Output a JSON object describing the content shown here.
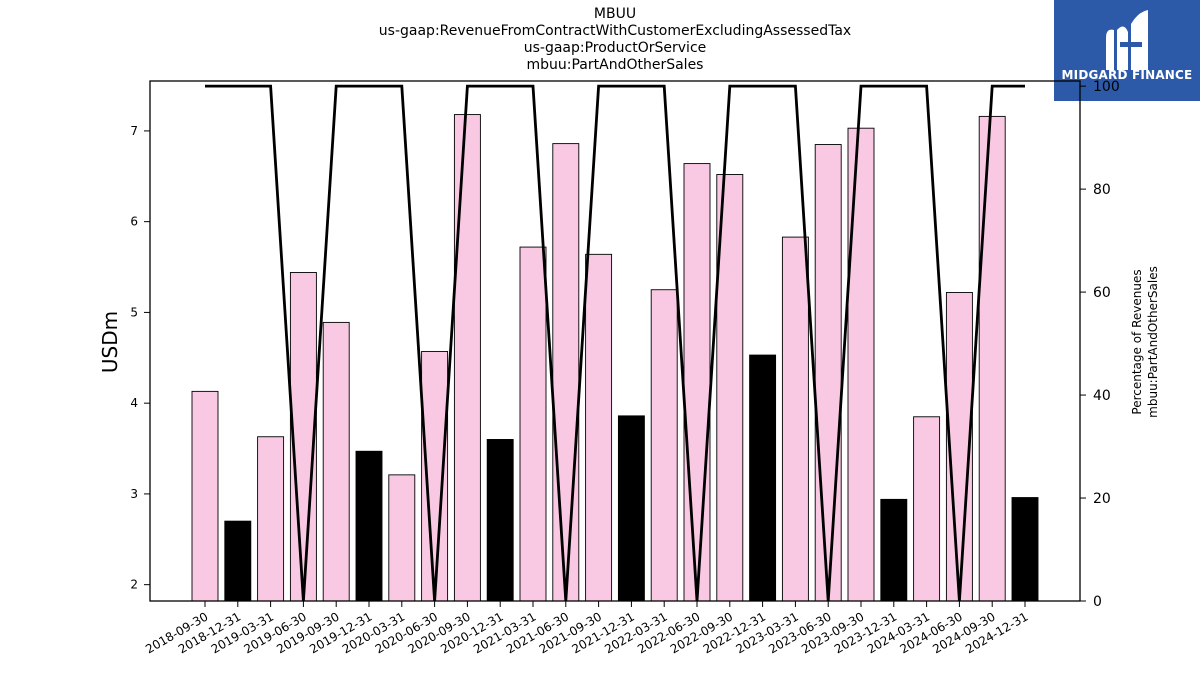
{
  "header": {
    "ticker": "MBUU",
    "line2": "us-gaap:RevenueFromContractWithCustomerExcludingAssessedTax",
    "line3": "us-gaap:ProductOrService",
    "line4": "mbuu:PartAndOtherSales"
  },
  "logo": {
    "text": "MIDGARD FINANCE",
    "bg_color": "#2d5aa8",
    "icon": "midgard-logo-icon"
  },
  "chart_data": {
    "type": "bar",
    "categories": [
      "2018-09-30",
      "2018-12-31",
      "2019-03-31",
      "2019-06-30",
      "2019-09-30",
      "2019-12-31",
      "2020-03-31",
      "2020-06-30",
      "2020-09-30",
      "2020-12-31",
      "2021-03-31",
      "2021-06-30",
      "2021-09-30",
      "2021-12-31",
      "2022-03-31",
      "2022-06-30",
      "2022-09-30",
      "2022-12-31",
      "2023-03-31",
      "2023-06-30",
      "2023-09-30",
      "2023-12-31",
      "2024-03-31",
      "2024-06-30",
      "2024-09-30",
      "2024-12-31"
    ],
    "series": [
      {
        "kind": "bar",
        "axis": "left",
        "values": [
          4.13,
          2.7,
          3.63,
          5.44,
          4.89,
          3.47,
          3.21,
          4.57,
          7.18,
          3.6,
          5.72,
          6.86,
          5.64,
          3.86,
          5.25,
          6.64,
          6.52,
          4.53,
          5.83,
          6.85,
          7.03,
          2.94,
          3.85,
          5.22,
          7.16,
          2.96
        ],
        "colors": [
          "#f9c9e3",
          "#000000",
          "#f9c9e3",
          "#f9c9e3",
          "#f9c9e3",
          "#000000",
          "#f9c9e3",
          "#f9c9e3",
          "#f9c9e3",
          "#000000",
          "#f9c9e3",
          "#f9c9e3",
          "#f9c9e3",
          "#000000",
          "#f9c9e3",
          "#f9c9e3",
          "#f9c9e3",
          "#000000",
          "#f9c9e3",
          "#f9c9e3",
          "#f9c9e3",
          "#000000",
          "#f9c9e3",
          "#f9c9e3",
          "#f9c9e3",
          "#000000"
        ]
      },
      {
        "kind": "line",
        "axis": "right",
        "color": "#000000",
        "values": [
          100,
          100,
          100,
          0,
          100,
          100,
          100,
          0,
          100,
          100,
          100,
          0,
          100,
          100,
          100,
          0,
          100,
          100,
          100,
          0,
          100,
          100,
          100,
          0,
          100,
          100
        ]
      }
    ],
    "ylabel": "USDm",
    "ylabel_right_line1": "Percentage of Revenues",
    "ylabel_right_line2": "mbuu:PartAndOtherSales",
    "ylim": [
      1.82,
      7.55
    ],
    "yticks": [
      2,
      3,
      4,
      5,
      6,
      7
    ],
    "ylim_right": [
      0,
      101
    ],
    "yticks_right": [
      0,
      20,
      40,
      60,
      80,
      100
    ],
    "grid": false,
    "legend": "none"
  }
}
